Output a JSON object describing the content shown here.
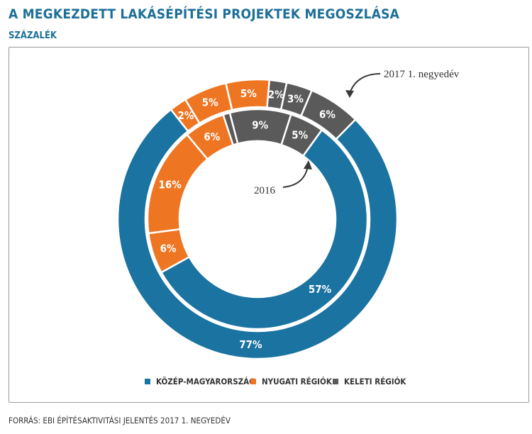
{
  "title": "A MEGKEZDETT LAKÁSÉPÍTÉSI PROJEKTEK MEGOSZLÁSA",
  "subtitle": "SZÁZALÉK",
  "source": "FORRÁS: EBI ÉPÍTÉSAKTIVITÁSI JELENTÉS 2017 1. NEGYEDÉV",
  "colors": {
    "kozep": "#1a73a0",
    "nyugati": "#ee7623",
    "keleti": "#5a5a5a"
  },
  "legend": [
    {
      "label": "KÖZÉP-MAGYARORSZÁG",
      "color": "#1a73a0"
    },
    {
      "label": "NYUGATI RÉGIÓK",
      "color": "#ee7623"
    },
    {
      "label": "KELETI RÉGIÓK",
      "color": "#5a5a5a"
    }
  ],
  "chart_data": {
    "type": "donut",
    "title": "A MEGKEZDETT LAKÁSÉPÍTÉSI PROJEKTEK MEGOSZLÁSA",
    "unit": "SZÁZALÉK",
    "series": [
      {
        "name": "2017 1. negyedév",
        "ring": "outer",
        "slices": [
          {
            "region": "KÖZÉP-MAGYARORSZÁG",
            "label": "77%",
            "value": 77
          },
          {
            "region": "NYUGATI RÉGIÓK",
            "label": "2%",
            "value": 2
          },
          {
            "region": "NYUGATI RÉGIÓK",
            "label": "5%",
            "value": 5
          },
          {
            "region": "NYUGATI RÉGIÓK",
            "label": "5%",
            "value": 5
          },
          {
            "region": "KELETI RÉGIÓK",
            "label": "2%",
            "value": 2
          },
          {
            "region": "KELETI RÉGIÓK",
            "label": "3%",
            "value": 3
          },
          {
            "region": "KELETI RÉGIÓK",
            "label": "6%",
            "value": 6
          }
        ]
      },
      {
        "name": "2016",
        "ring": "inner",
        "slices": [
          {
            "region": "KÖZÉP-MAGYARORSZÁG",
            "label": "57%",
            "value": 57
          },
          {
            "region": "NYUGATI RÉGIÓK",
            "label": "6%",
            "value": 6
          },
          {
            "region": "NYUGATI RÉGIÓK",
            "label": "16%",
            "value": 16
          },
          {
            "region": "NYUGATI RÉGIÓK",
            "label": "6%",
            "value": 6
          },
          {
            "region": "KELETI RÉGIÓK",
            "label": "",
            "value": 1
          },
          {
            "region": "KELETI RÉGIÓK",
            "label": "9%",
            "value": 9
          },
          {
            "region": "KELETI RÉGIÓK",
            "label": "5%",
            "value": 5
          }
        ]
      }
    ],
    "annotations": [
      "2017 1. negyedév",
      "2016"
    ]
  }
}
